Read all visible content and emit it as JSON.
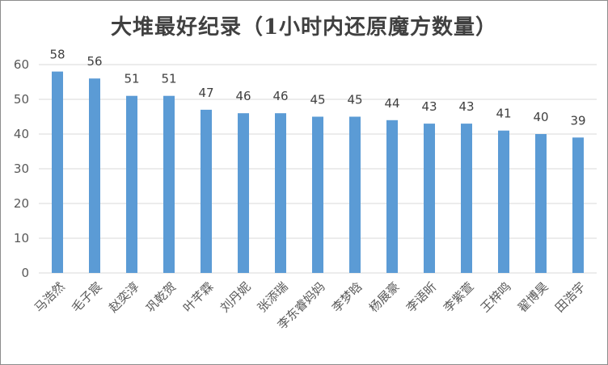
{
  "chart_data": {
    "type": "bar",
    "title": "大堆最好纪录（1小时内还原魔方数量）",
    "categories": [
      "马浩然",
      "毛子宸",
      "赵奕淳",
      "巩乾贺",
      "叶芊霖",
      "刘丹妮",
      "张添瑞",
      "李东睿妈妈",
      "李梦晗",
      "杨展豪",
      "李语昕",
      "李紫萱",
      "王梓鸣",
      "翟博昊",
      "田浩宇"
    ],
    "values": [
      58,
      56,
      51,
      51,
      47,
      46,
      46,
      45,
      45,
      44,
      43,
      43,
      41,
      40,
      39
    ],
    "ylim": [
      0,
      60
    ],
    "yticks": [
      0,
      10,
      20,
      30,
      40,
      50,
      60
    ],
    "grid": true,
    "bar_color": "#5b9bd5",
    "grid_color": "#d9d9d9",
    "data_labels": true
  }
}
